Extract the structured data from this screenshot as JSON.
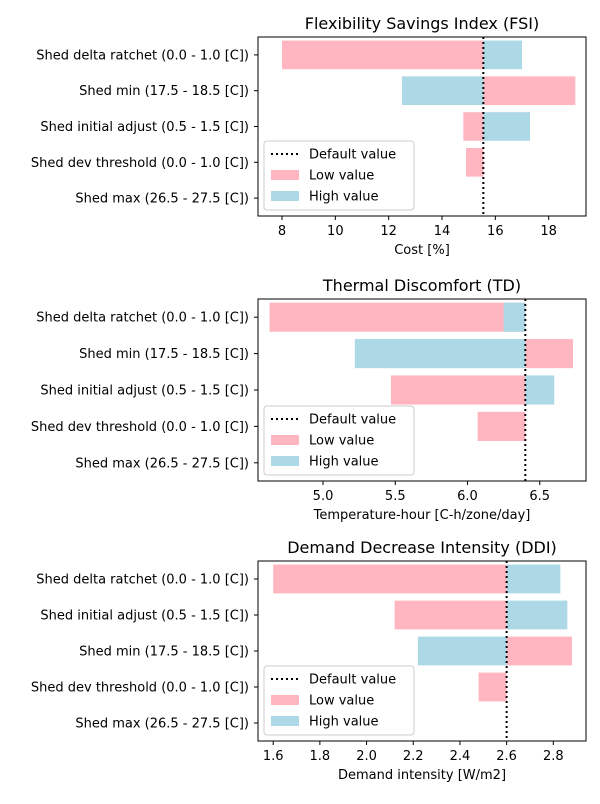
{
  "colors": {
    "low": "#ffb6c1",
    "high": "#add8e6",
    "default_line": "#000000"
  },
  "chart_data": [
    {
      "type": "bar",
      "orientation": "horizontal",
      "title": "Flexibility Savings Index (FSI)",
      "xlabel": "Cost [%]",
      "xlim": [
        7.1,
        19.4
      ],
      "xticks": [
        8,
        10,
        12,
        14,
        16,
        18
      ],
      "tick_labels": [
        "8",
        "10",
        "12",
        "14",
        "16",
        "18"
      ],
      "default_value": 15.55,
      "categories": [
        "Shed delta ratchet (0.0 - 1.0 [C])",
        "Shed min (17.5 - 18.5 [C])",
        "Shed initial adjust (0.5 - 1.5 [C])",
        "Shed dev threshold (0.0 - 1.0 [C])",
        "Shed max (26.5 - 27.5 [C])"
      ],
      "series": [
        {
          "name": "Low value",
          "values": [
            8.0,
            19.0,
            14.8,
            14.9,
            null
          ]
        },
        {
          "name": "High value",
          "values": [
            17.0,
            12.5,
            17.3,
            null,
            null
          ]
        }
      ],
      "legend": {
        "position": "lower-left",
        "default_label": "Default value"
      }
    },
    {
      "type": "bar",
      "orientation": "horizontal",
      "title": "Thermal Discomfort (TD)",
      "xlabel": "Temperature-hour [C-h/zone/day]",
      "xlim": [
        4.55,
        6.82
      ],
      "xticks": [
        5.0,
        5.5,
        6.0,
        6.5
      ],
      "tick_labels": [
        "5.0",
        "5.5",
        "6.0",
        "6.5"
      ],
      "default_value": 6.4,
      "categories": [
        "Shed delta ratchet (0.0 - 1.0 [C])",
        "Shed min (17.5 - 18.5 [C])",
        "Shed initial adjust (0.5 - 1.5 [C])",
        "Shed dev threshold (0.0 - 1.0 [C])",
        "Shed max (26.5 - 27.5 [C])"
      ],
      "series": [
        {
          "name": "Low value",
          "values": [
            4.63,
            6.73,
            5.47,
            6.07,
            null
          ]
        },
        {
          "name": "High value",
          "values": [
            6.25,
            5.22,
            6.6,
            null,
            null
          ]
        }
      ],
      "legend": {
        "position": "lower-left",
        "default_label": "Default value"
      }
    },
    {
      "type": "bar",
      "orientation": "horizontal",
      "title": "Demand Decrease Intensity (DDI)",
      "xlabel": "Demand intensity [W/m2]",
      "xlim": [
        1.535,
        2.94
      ],
      "xticks": [
        1.6,
        1.8,
        2.0,
        2.2,
        2.4,
        2.6,
        2.8
      ],
      "tick_labels": [
        "1.6",
        "1.8",
        "2.0",
        "2.2",
        "2.4",
        "2.6",
        "2.8"
      ],
      "default_value": 2.6,
      "categories": [
        "Shed delta ratchet (0.0 - 1.0 [C])",
        "Shed initial adjust (0.5 - 1.5 [C])",
        "Shed min (17.5 - 18.5 [C])",
        "Shed dev threshold (0.0 - 1.0 [C])",
        "Shed max (26.5 - 27.5 [C])"
      ],
      "series": [
        {
          "name": "Low value",
          "values": [
            1.6,
            2.12,
            2.88,
            2.48,
            null
          ]
        },
        {
          "name": "High value",
          "values": [
            2.83,
            2.86,
            2.22,
            null,
            null
          ]
        }
      ],
      "legend": {
        "position": "lower-left",
        "default_label": "Default value"
      }
    }
  ]
}
